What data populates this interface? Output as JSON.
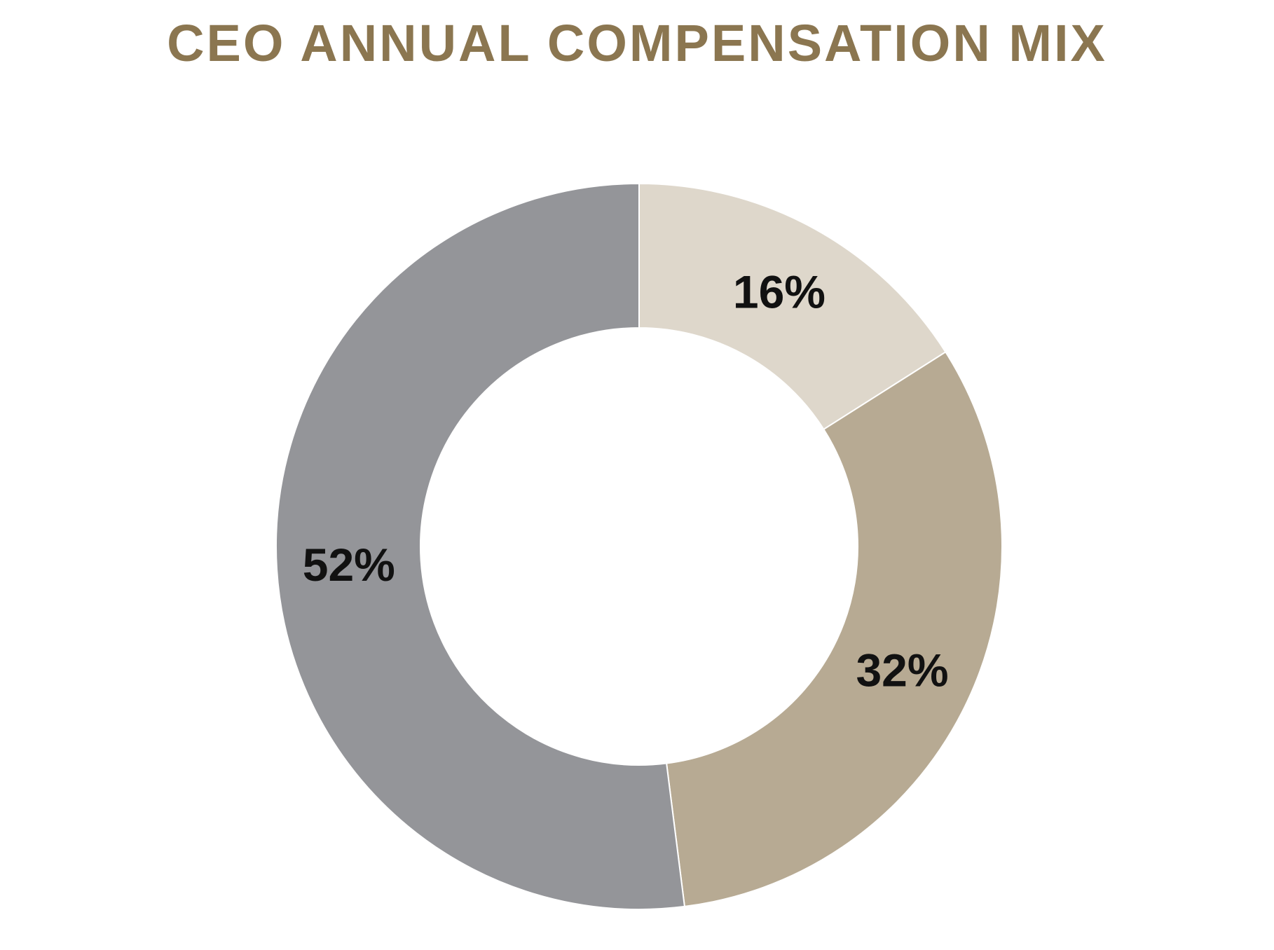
{
  "title": "CEO ANNUAL COMPENSATION MIX",
  "chart_data": {
    "type": "pie",
    "title": "CEO ANNUAL COMPENSATION MIX",
    "donut": true,
    "start": "12 o'clock",
    "direction": "clockwise",
    "slices": [
      {
        "value": 16,
        "label": "16%",
        "color": "#DED7CB"
      },
      {
        "value": 32,
        "label": "32%",
        "color": "#B7AA93"
      },
      {
        "value": 52,
        "label": "52%",
        "color": "#949599"
      }
    ]
  }
}
